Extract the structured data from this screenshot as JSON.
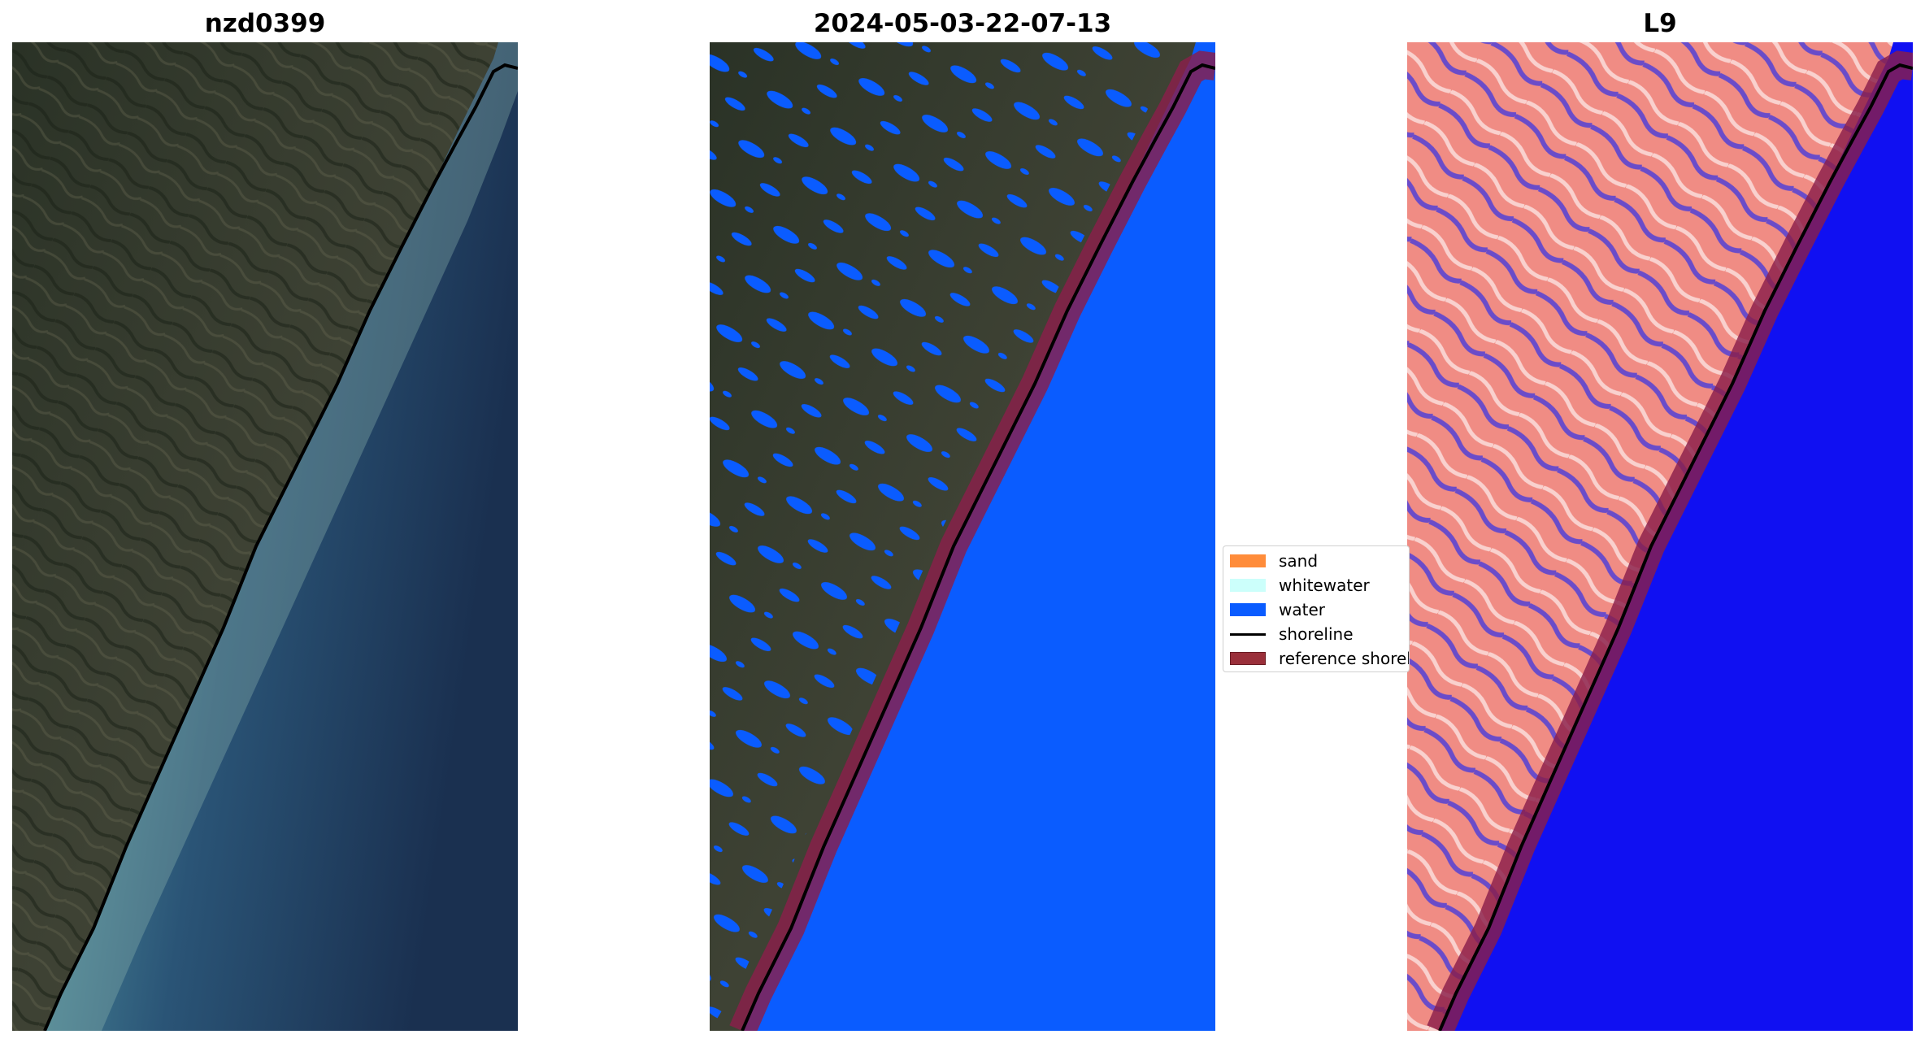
{
  "panels": [
    {
      "title": "nzd0399",
      "view": "true-colour satellite image"
    },
    {
      "title": "2024-05-03-22-07-13",
      "view": "classified image"
    },
    {
      "title": "L9",
      "view": "water index image"
    }
  ],
  "legend": {
    "items": [
      {
        "label": "sand",
        "color": "#ff8c3a",
        "kind": "patch"
      },
      {
        "label": "whitewater",
        "color": "#ccfffb",
        "kind": "patch"
      },
      {
        "label": "water",
        "color": "#0a5cff",
        "kind": "patch"
      },
      {
        "label": "shoreline",
        "color": "#000000",
        "kind": "line"
      },
      {
        "label": "reference shoreline buffer",
        "color": "#9a2f3a",
        "kind": "patch"
      }
    ]
  },
  "colors": {
    "land_dark": "#2c3428",
    "land_mid": "#4a4a3c",
    "sea_shallow": "#5f9aa0",
    "sea_deep": "#1c3454",
    "water_class": "#0a5cff",
    "index_land": "#f08c84",
    "index_water": "#1010f2",
    "buffer": "#8a1f4a"
  }
}
